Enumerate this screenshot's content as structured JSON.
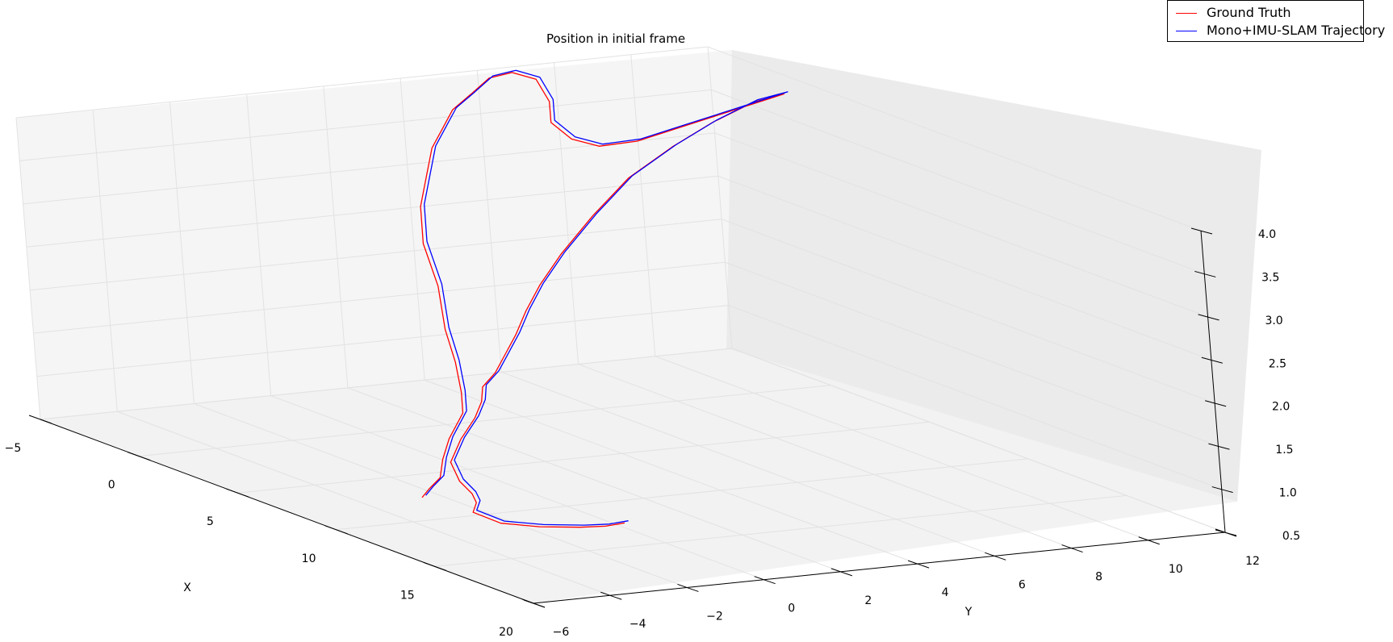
{
  "chart_data": {
    "type": "line",
    "projection": "3d",
    "title": "Position in initial frame",
    "xlabel": "X",
    "ylabel": "Y",
    "zlabel": "",
    "xlim": [
      -5,
      20
    ],
    "ylim": [
      -6,
      12
    ],
    "zlim": [
      0.5,
      4.0
    ],
    "x_ticks": [
      "−5",
      "0",
      "5",
      "10",
      "15",
      "20"
    ],
    "y_ticks": [
      "−6",
      "−4",
      "−2",
      "0",
      "2",
      "4",
      "6",
      "8",
      "10",
      "12"
    ],
    "z_ticks": [
      "0.5",
      "1.0",
      "1.5",
      "2.0",
      "2.5",
      "3.0",
      "3.5",
      "4.0"
    ],
    "grid": true,
    "legend_position": "top-right",
    "series": [
      {
        "name": "Ground Truth",
        "color": "#ff0000",
        "points": [
          [
            16.6,
            -1.8,
            0.95
          ],
          [
            17.2,
            -2.6,
            1.0
          ],
          [
            17.5,
            -3.4,
            1.05
          ],
          [
            17.0,
            -4.2,
            1.05
          ],
          [
            16.2,
            -4.8,
            1.05
          ],
          [
            15.2,
            -5.0,
            1.1
          ],
          [
            14.2,
            -4.4,
            1.1
          ],
          [
            13.2,
            -4.0,
            1.1
          ],
          [
            12.2,
            -3.8,
            1.15
          ],
          [
            11.0,
            -3.4,
            1.25
          ],
          [
            9.6,
            -2.4,
            1.35
          ],
          [
            8.4,
            -1.4,
            1.45
          ],
          [
            7.2,
            -0.6,
            1.5
          ],
          [
            6.1,
            0.0,
            1.55
          ],
          [
            5.2,
            0.8,
            1.6
          ],
          [
            4.2,
            1.6,
            1.7
          ],
          [
            3.2,
            2.4,
            1.8
          ],
          [
            2.2,
            3.2,
            1.95
          ],
          [
            1.0,
            4.2,
            2.1
          ],
          [
            -0.2,
            5.4,
            2.3
          ],
          [
            -1.2,
            6.8,
            2.6
          ],
          [
            -1.6,
            8.0,
            2.95
          ],
          [
            -1.2,
            9.0,
            3.3
          ],
          [
            -0.6,
            9.8,
            3.6
          ],
          [
            0.0,
            10.6,
            3.85
          ],
          [
            0.4,
            11.2,
            3.95
          ],
          [
            0.2,
            11.0,
            3.9
          ],
          [
            -0.6,
            10.2,
            3.7
          ],
          [
            -1.4,
            9.4,
            3.5
          ],
          [
            -2.2,
            8.6,
            3.3
          ],
          [
            -3.0,
            8.0,
            3.2
          ],
          [
            -3.6,
            7.6,
            3.25
          ],
          [
            -4.2,
            7.4,
            3.4
          ],
          [
            -4.6,
            7.6,
            3.6
          ],
          [
            -4.8,
            7.4,
            3.85
          ],
          [
            -4.4,
            6.6,
            4.0
          ],
          [
            -3.6,
            5.6,
            4.05
          ],
          [
            -3.0,
            4.8,
            3.95
          ],
          [
            -2.0,
            3.8,
            3.9
          ],
          [
            -1.0,
            3.0,
            3.8
          ],
          [
            0.0,
            2.2,
            3.7
          ],
          [
            1.2,
            1.4,
            3.5
          ],
          [
            2.4,
            0.6,
            3.3
          ],
          [
            3.6,
            0.0,
            3.0
          ],
          [
            4.6,
            -0.2,
            2.6
          ],
          [
            5.6,
            -0.6,
            2.2
          ],
          [
            6.4,
            -0.8,
            1.9
          ],
          [
            7.4,
            -1.2,
            1.65
          ],
          [
            8.2,
            -1.6,
            1.5
          ],
          [
            9.4,
            -2.6,
            1.35
          ],
          [
            10.6,
            -3.4,
            1.25
          ],
          [
            11.6,
            -4.0,
            1.15
          ],
          [
            12.2,
            -4.6,
            1.1
          ],
          [
            12.6,
            -5.0,
            1.05
          ]
        ]
      },
      {
        "name": "Mono+IMU-SLAM Trajectory",
        "color": "#0000ff",
        "points": [
          [
            16.6,
            -1.7,
            0.97
          ],
          [
            17.2,
            -2.5,
            1.02
          ],
          [
            17.5,
            -3.3,
            1.07
          ],
          [
            17.0,
            -4.1,
            1.07
          ],
          [
            16.2,
            -4.7,
            1.07
          ],
          [
            15.2,
            -4.9,
            1.12
          ],
          [
            14.2,
            -4.3,
            1.12
          ],
          [
            13.2,
            -3.9,
            1.12
          ],
          [
            12.2,
            -3.7,
            1.17
          ],
          [
            11.0,
            -3.3,
            1.27
          ],
          [
            9.6,
            -2.3,
            1.37
          ],
          [
            8.4,
            -1.3,
            1.47
          ],
          [
            7.2,
            -0.5,
            1.52
          ],
          [
            6.1,
            0.1,
            1.57
          ],
          [
            5.2,
            0.9,
            1.62
          ],
          [
            4.2,
            1.7,
            1.72
          ],
          [
            3.2,
            2.5,
            1.82
          ],
          [
            2.2,
            3.3,
            1.97
          ],
          [
            1.0,
            4.3,
            2.12
          ],
          [
            -0.2,
            5.5,
            2.32
          ],
          [
            -1.2,
            6.9,
            2.62
          ],
          [
            -1.6,
            8.1,
            2.97
          ],
          [
            -1.2,
            9.1,
            3.32
          ],
          [
            -0.6,
            9.9,
            3.62
          ],
          [
            0.0,
            10.7,
            3.87
          ],
          [
            0.4,
            11.3,
            3.97
          ],
          [
            0.2,
            11.1,
            3.92
          ],
          [
            -0.6,
            10.3,
            3.72
          ],
          [
            -1.4,
            9.5,
            3.52
          ],
          [
            -2.2,
            8.7,
            3.32
          ],
          [
            -3.0,
            8.1,
            3.22
          ],
          [
            -3.6,
            7.7,
            3.27
          ],
          [
            -4.2,
            7.5,
            3.42
          ],
          [
            -4.6,
            7.7,
            3.62
          ],
          [
            -4.8,
            7.5,
            3.87
          ],
          [
            -4.4,
            6.7,
            4.02
          ],
          [
            -3.6,
            5.7,
            4.07
          ],
          [
            -3.0,
            4.9,
            3.97
          ],
          [
            -2.0,
            3.9,
            3.92
          ],
          [
            -1.0,
            3.1,
            3.82
          ],
          [
            0.0,
            2.3,
            3.72
          ],
          [
            1.2,
            1.5,
            3.52
          ],
          [
            2.4,
            0.7,
            3.32
          ],
          [
            3.6,
            0.1,
            3.02
          ],
          [
            4.6,
            -0.1,
            2.62
          ],
          [
            5.6,
            -0.5,
            2.22
          ],
          [
            6.4,
            -0.7,
            1.92
          ],
          [
            7.4,
            -1.1,
            1.67
          ],
          [
            8.2,
            -1.5,
            1.52
          ],
          [
            9.4,
            -2.5,
            1.37
          ],
          [
            10.6,
            -3.3,
            1.27
          ],
          [
            11.6,
            -3.9,
            1.17
          ],
          [
            12.2,
            -4.5,
            1.12
          ],
          [
            12.6,
            -4.9,
            1.07
          ]
        ]
      }
    ]
  },
  "legend": {
    "items": [
      {
        "label": "Ground Truth",
        "color": "#ff0000"
      },
      {
        "label": "Mono+IMU-SLAM Trajectory",
        "color": "#0000ff"
      }
    ]
  }
}
